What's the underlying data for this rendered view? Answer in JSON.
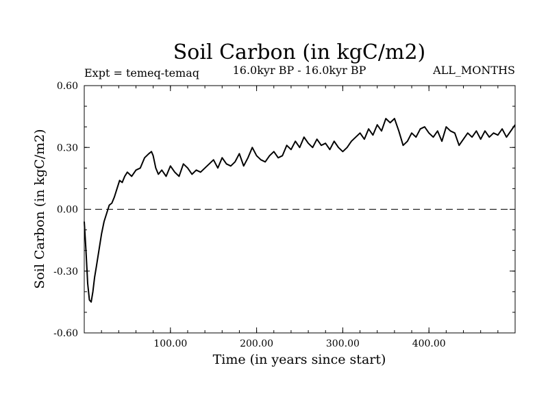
{
  "chart_data": {
    "type": "line",
    "title": "Soil Carbon (in kgC/m2)",
    "subtitle": "16.0kyr BP - 16.0kyr BP",
    "left_annotation": "Expt = temeq-temaq",
    "right_annotation": "ALL_MONTHS",
    "xlabel": "Time (in years since start)",
    "ylabel": "Soil Carbon (in kgC/m2)",
    "xlim": [
      0,
      500
    ],
    "ylim": [
      -0.6,
      0.6
    ],
    "x_ticks": [
      {
        "value": 100,
        "label": "100.00"
      },
      {
        "value": 200,
        "label": "200.00"
      },
      {
        "value": 300,
        "label": "300.00"
      },
      {
        "value": 400,
        "label": "400.00"
      }
    ],
    "y_ticks": [
      {
        "value": 0.6,
        "label": "0.60"
      },
      {
        "value": 0.3,
        "label": "0.30"
      },
      {
        "value": 0.0,
        "label": "0.00"
      },
      {
        "value": -0.3,
        "label": "-0.30"
      },
      {
        "value": -0.6,
        "label": "-0.60"
      }
    ],
    "reference_line": {
      "y": 0.0,
      "style": "dashed"
    },
    "series": [
      {
        "name": "temeq-temaq",
        "x": [
          0,
          2,
          4,
          6,
          8,
          10,
          12,
          14,
          17,
          20,
          23,
          26,
          29,
          32,
          35,
          38,
          41,
          44,
          47,
          50,
          55,
          60,
          65,
          70,
          75,
          78,
          80,
          83,
          86,
          90,
          95,
          100,
          105,
          110,
          115,
          120,
          125,
          130,
          135,
          140,
          145,
          150,
          155,
          160,
          165,
          170,
          175,
          180,
          185,
          190,
          195,
          200,
          205,
          210,
          215,
          220,
          225,
          230,
          235,
          240,
          245,
          250,
          255,
          260,
          265,
          270,
          275,
          280,
          285,
          290,
          295,
          300,
          305,
          310,
          315,
          320,
          325,
          330,
          335,
          340,
          345,
          350,
          355,
          360,
          365,
          370,
          375,
          380,
          385,
          390,
          395,
          400,
          405,
          410,
          415,
          420,
          425,
          430,
          435,
          440,
          445,
          450,
          455,
          460,
          465,
          470,
          475,
          480,
          485,
          490,
          495,
          500
        ],
        "y": [
          -0.06,
          -0.2,
          -0.36,
          -0.44,
          -0.45,
          -0.4,
          -0.33,
          -0.28,
          -0.2,
          -0.12,
          -0.06,
          -0.02,
          0.02,
          0.03,
          0.06,
          0.1,
          0.14,
          0.13,
          0.16,
          0.18,
          0.16,
          0.19,
          0.2,
          0.25,
          0.27,
          0.28,
          0.26,
          0.2,
          0.17,
          0.19,
          0.16,
          0.21,
          0.18,
          0.16,
          0.22,
          0.2,
          0.17,
          0.19,
          0.18,
          0.2,
          0.22,
          0.24,
          0.2,
          0.25,
          0.22,
          0.21,
          0.23,
          0.27,
          0.21,
          0.25,
          0.3,
          0.26,
          0.24,
          0.23,
          0.26,
          0.28,
          0.25,
          0.26,
          0.31,
          0.29,
          0.33,
          0.3,
          0.35,
          0.32,
          0.3,
          0.34,
          0.31,
          0.32,
          0.29,
          0.33,
          0.3,
          0.28,
          0.3,
          0.33,
          0.35,
          0.37,
          0.34,
          0.39,
          0.36,
          0.41,
          0.38,
          0.44,
          0.42,
          0.44,
          0.38,
          0.31,
          0.33,
          0.37,
          0.35,
          0.39,
          0.4,
          0.37,
          0.35,
          0.38,
          0.33,
          0.4,
          0.38,
          0.37,
          0.31,
          0.34,
          0.37,
          0.35,
          0.38,
          0.34,
          0.38,
          0.35,
          0.37,
          0.36,
          0.39,
          0.35,
          0.38,
          0.41
        ]
      }
    ]
  }
}
